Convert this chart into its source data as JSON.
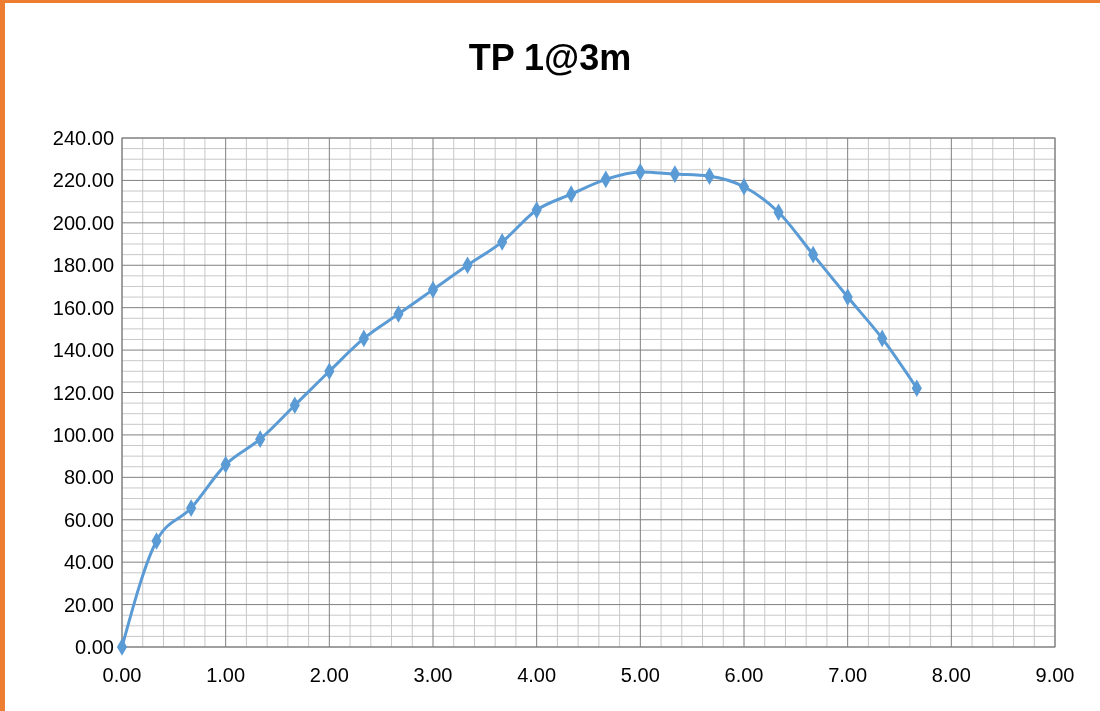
{
  "chart_data": {
    "type": "line",
    "title": "TP 1@3m",
    "x": [
      0,
      0.333,
      0.667,
      1,
      1.333,
      1.667,
      2,
      2.333,
      2.667,
      3,
      3.333,
      3.667,
      4,
      4.333,
      4.667,
      5,
      5.333,
      5.667,
      6,
      6.333,
      6.667,
      7,
      7.333,
      7.667
    ],
    "series": [
      {
        "color": "#5b9bd5",
        "values": [
          0,
          50,
          65.5,
          86,
          98,
          114,
          130,
          145.5,
          157,
          168.5,
          180,
          191,
          206,
          213.5,
          220.5,
          224,
          223,
          222,
          217,
          205,
          185,
          165,
          145.5,
          122
        ]
      }
    ],
    "xlim": [
      0,
      9
    ],
    "xticks": [
      {
        "value": 0,
        "label": "0.00"
      },
      {
        "value": 1,
        "label": "1.00"
      },
      {
        "value": 2,
        "label": "2.00"
      },
      {
        "value": 3,
        "label": "3.00"
      },
      {
        "value": 4,
        "label": "4.00"
      },
      {
        "value": 5,
        "label": "5.00"
      },
      {
        "value": 6,
        "label": "6.00"
      },
      {
        "value": 7,
        "label": "7.00"
      },
      {
        "value": 8,
        "label": "8.00"
      },
      {
        "value": 9,
        "label": "9.00"
      }
    ],
    "ylim": [
      0,
      240
    ],
    "yticks": [
      {
        "value": 0,
        "label": "0.00"
      },
      {
        "value": 20,
        "label": "20.00"
      },
      {
        "value": 40,
        "label": "40.00"
      },
      {
        "value": 60,
        "label": "60.00"
      },
      {
        "value": 80,
        "label": "80.00"
      },
      {
        "value": 100,
        "label": "100.00"
      },
      {
        "value": 120,
        "label": "120.00"
      },
      {
        "value": 140,
        "label": "140.00"
      },
      {
        "value": 160,
        "label": "160.00"
      },
      {
        "value": 180,
        "label": "180.00"
      },
      {
        "value": 200,
        "label": "200.00"
      },
      {
        "value": 220,
        "label": "220.00"
      },
      {
        "value": 240,
        "label": "240.00"
      }
    ],
    "grid": true,
    "marker": "diamond",
    "line_style": "solid"
  }
}
